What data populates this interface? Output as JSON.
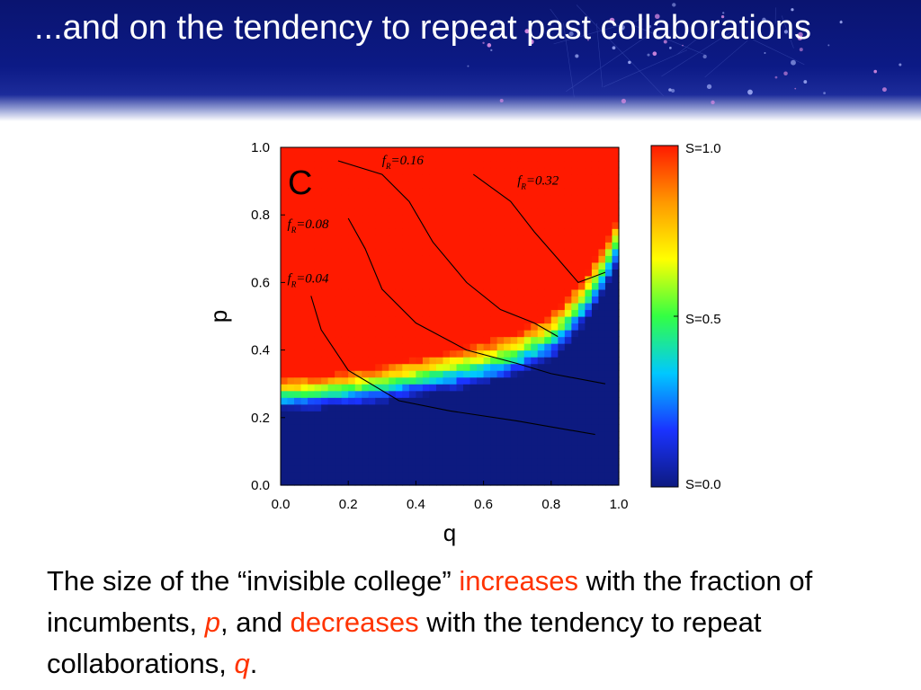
{
  "slide": {
    "title": "...and on the tendency to repeat past collaborations"
  },
  "colors": {
    "header_bg": "#0c1a86",
    "accent": "#ff3300",
    "text": "#000000"
  },
  "chart_data": {
    "type": "heatmap",
    "title": "",
    "panel_label": "C",
    "xlabel": "q",
    "ylabel": "p",
    "xlim": [
      0.0,
      1.0
    ],
    "ylim": [
      0.0,
      1.0
    ],
    "x_ticks": [
      "0.0",
      "0.2",
      "0.4",
      "0.6",
      "0.8",
      "1.0"
    ],
    "y_ticks": [
      "0.0",
      "0.2",
      "0.4",
      "0.6",
      "0.8",
      "1.0"
    ],
    "colorscale": [
      "#0d1a80",
      "#1a33ff",
      "#00c8ff",
      "#33ff44",
      "#ffff00",
      "#ff9900",
      "#ff1a00"
    ],
    "colorbar_labels": [
      "S=1.0",
      "S=0.5",
      "S=0.0"
    ],
    "value_name": "S",
    "boundary_S_0_5": {
      "q": [
        0.0,
        0.1,
        0.2,
        0.3,
        0.4,
        0.5,
        0.6,
        0.7,
        0.8,
        0.85,
        0.9,
        0.95,
        1.0
      ],
      "p": [
        0.27,
        0.275,
        0.285,
        0.3,
        0.32,
        0.34,
        0.36,
        0.39,
        0.44,
        0.49,
        0.55,
        0.63,
        0.73
      ]
    },
    "contours": [
      {
        "label_base": "f",
        "label_sub": "R",
        "label_value": "=0.04",
        "q": [
          0.09,
          0.12,
          0.2,
          0.35,
          0.5,
          0.7,
          0.93
        ],
        "p": [
          0.56,
          0.46,
          0.34,
          0.25,
          0.22,
          0.19,
          0.15
        ]
      },
      {
        "label_base": "f",
        "label_sub": "R",
        "label_value": "=0.08",
        "q": [
          0.2,
          0.25,
          0.3,
          0.4,
          0.55,
          0.7,
          0.8,
          0.96
        ],
        "p": [
          0.79,
          0.7,
          0.58,
          0.48,
          0.4,
          0.36,
          0.33,
          0.3
        ]
      },
      {
        "label_base": "f",
        "label_sub": "R",
        "label_value": "=0.16",
        "q": [
          0.17,
          0.3,
          0.38,
          0.45,
          0.55,
          0.65,
          0.75,
          0.82
        ],
        "p": [
          0.96,
          0.92,
          0.84,
          0.72,
          0.6,
          0.52,
          0.48,
          0.44
        ]
      },
      {
        "label_base": "f",
        "label_sub": "R",
        "label_value": "=0.32",
        "q": [
          0.57,
          0.68,
          0.75,
          0.82,
          0.88,
          0.96
        ],
        "p": [
          0.92,
          0.84,
          0.75,
          0.67,
          0.6,
          0.63
        ]
      }
    ]
  },
  "body": {
    "t1": "The size of the “invisible college” ",
    "increases": "increases",
    "t2": " with the fraction of incumbents, ",
    "p": "p",
    "t3": ", and ",
    "decreases": "decreases",
    "t4": " with the tendency to repeat collaborations, ",
    "q": "q",
    "t5": "."
  }
}
